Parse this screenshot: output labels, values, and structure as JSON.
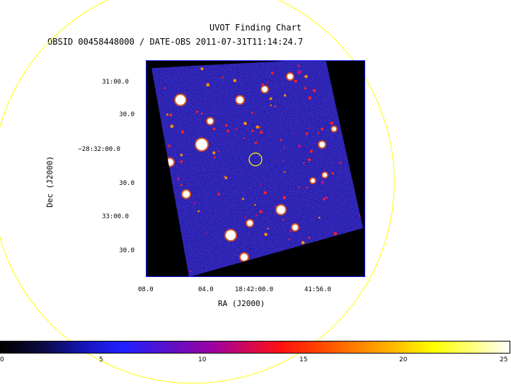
{
  "header": {
    "title": "UVOT Finding Chart",
    "subtitle": "OBSID 00458448000 / DATE-OBS 2011-07-31T11:14:24.7"
  },
  "axes": {
    "xlabel": "RA (J2000)",
    "ylabel": "Dec (J2000)",
    "yticks": [
      "31:00.0",
      "30.0",
      "−28:32:00.0",
      "30.0",
      "33:00.0",
      "30.0"
    ],
    "xticks": [
      "08.0",
      "04.0",
      "18:42:00.0",
      "41:56.0"
    ]
  },
  "colorbar": {
    "ticks": [
      "0",
      "5",
      "10",
      "15",
      "20",
      "25"
    ]
  },
  "colors": {
    "ring": "#ffff00",
    "target_marker": "#ffff00",
    "field_background": "#1f1fb0",
    "frame": "#1a1aff"
  }
}
